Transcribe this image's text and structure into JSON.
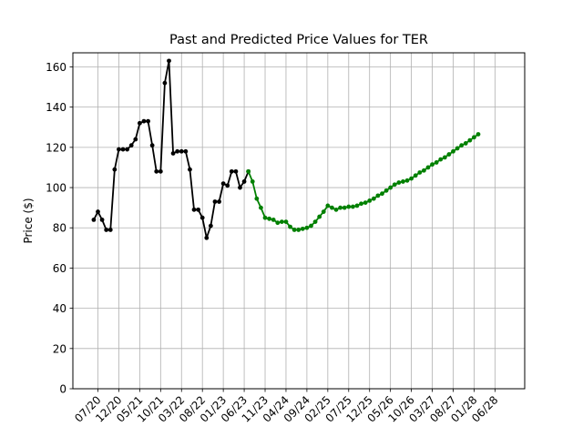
{
  "chart_data": {
    "type": "line",
    "title": "Past and Predicted Price Values for TER",
    "xlabel": "",
    "ylabel": "Price ($)",
    "ylim": [
      0,
      167
    ],
    "yticks": [
      0,
      20,
      40,
      60,
      80,
      100,
      120,
      140,
      160
    ],
    "xtick_labels": [
      "07/20",
      "12/20",
      "05/21",
      "10/21",
      "03/22",
      "08/22",
      "01/23",
      "06/23",
      "11/23",
      "04/24",
      "09/24",
      "02/25",
      "07/25",
      "12/25",
      "05/26",
      "10/26",
      "03/27",
      "08/27",
      "01/28",
      "06/28"
    ],
    "grid": true,
    "colors": {
      "past": "#000000",
      "predicted": "#008000",
      "grid": "#b0b0b0"
    },
    "series": [
      {
        "key": "past",
        "values": [
          [
            -0.2,
            84
          ],
          [
            0.0,
            88
          ],
          [
            0.2,
            84
          ],
          [
            0.4,
            79
          ],
          [
            0.6,
            79
          ],
          [
            0.8,
            109
          ],
          [
            1.0,
            119
          ],
          [
            1.2,
            119
          ],
          [
            1.4,
            119
          ],
          [
            1.6,
            121
          ],
          [
            1.8,
            124
          ],
          [
            2.0,
            132
          ],
          [
            2.2,
            133
          ],
          [
            2.4,
            133
          ],
          [
            2.6,
            121
          ],
          [
            2.8,
            108
          ],
          [
            3.0,
            108
          ],
          [
            3.2,
            152
          ],
          [
            3.4,
            163
          ],
          [
            3.6,
            117
          ],
          [
            3.8,
            118
          ],
          [
            4.0,
            118
          ],
          [
            4.2,
            118
          ],
          [
            4.4,
            109
          ],
          [
            4.6,
            89
          ],
          [
            4.8,
            89
          ],
          [
            5.0,
            85
          ],
          [
            5.2,
            75
          ],
          [
            5.4,
            81
          ],
          [
            5.6,
            93
          ],
          [
            5.8,
            93
          ],
          [
            6.0,
            102
          ],
          [
            6.2,
            101
          ],
          [
            6.4,
            108
          ],
          [
            6.6,
            108
          ],
          [
            6.8,
            100
          ],
          [
            7.0,
            103
          ],
          [
            7.2,
            108
          ]
        ]
      },
      {
        "key": "predicted",
        "values": [
          [
            7.2,
            108
          ],
          [
            7.4,
            103
          ],
          [
            7.6,
            94.5
          ],
          [
            7.8,
            90
          ],
          [
            8.0,
            85
          ],
          [
            8.2,
            84.5
          ],
          [
            8.4,
            84
          ],
          [
            8.6,
            82.5
          ],
          [
            8.8,
            83
          ],
          [
            9.0,
            83
          ],
          [
            9.2,
            80.5
          ],
          [
            9.4,
            79
          ],
          [
            9.6,
            79
          ],
          [
            9.8,
            79.5
          ],
          [
            10.0,
            80
          ],
          [
            10.2,
            81
          ],
          [
            10.4,
            83
          ],
          [
            10.6,
            85.5
          ],
          [
            10.8,
            88
          ],
          [
            11.0,
            91
          ],
          [
            11.2,
            90
          ],
          [
            11.4,
            89
          ],
          [
            11.6,
            90
          ],
          [
            11.8,
            90
          ],
          [
            12.0,
            90.5
          ],
          [
            12.2,
            90.5
          ],
          [
            12.4,
            91
          ],
          [
            12.6,
            92
          ],
          [
            12.8,
            92.5
          ],
          [
            13.0,
            93.5
          ],
          [
            13.2,
            94.5
          ],
          [
            13.4,
            96
          ],
          [
            13.6,
            97
          ],
          [
            13.8,
            98.5
          ],
          [
            14.0,
            100
          ],
          [
            14.2,
            101.5
          ],
          [
            14.4,
            102.5
          ],
          [
            14.6,
            103
          ],
          [
            14.8,
            103.5
          ],
          [
            15.0,
            104.5
          ],
          [
            15.2,
            106
          ],
          [
            15.4,
            107.5
          ],
          [
            15.6,
            108.5
          ],
          [
            15.8,
            110
          ],
          [
            16.0,
            111.5
          ],
          [
            16.2,
            112.5
          ],
          [
            16.4,
            114
          ],
          [
            16.6,
            115
          ],
          [
            16.8,
            116.5
          ],
          [
            17.0,
            118
          ],
          [
            17.2,
            119.5
          ],
          [
            17.4,
            121
          ],
          [
            17.6,
            122
          ],
          [
            17.8,
            123.5
          ],
          [
            18.0,
            125
          ],
          [
            18.2,
            126.5
          ]
        ]
      }
    ]
  }
}
